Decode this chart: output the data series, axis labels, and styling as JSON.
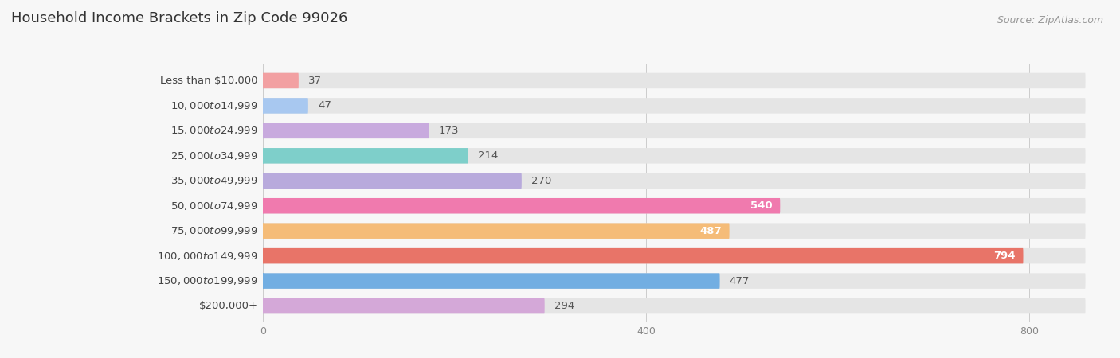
{
  "title": "Household Income Brackets in Zip Code 99026",
  "source": "Source: ZipAtlas.com",
  "categories": [
    "Less than $10,000",
    "$10,000 to $14,999",
    "$15,000 to $24,999",
    "$25,000 to $34,999",
    "$35,000 to $49,999",
    "$50,000 to $74,999",
    "$75,000 to $99,999",
    "$100,000 to $149,999",
    "$150,000 to $199,999",
    "$200,000+"
  ],
  "values": [
    37,
    47,
    173,
    214,
    270,
    540,
    487,
    794,
    477,
    294
  ],
  "bar_colors": [
    "#F2A0A2",
    "#A8C8F0",
    "#C8AADE",
    "#7ECFCA",
    "#B8AADC",
    "#F07AAE",
    "#F5BC78",
    "#E87468",
    "#72AEE2",
    "#D4A8D8"
  ],
  "value_inside": [
    false,
    false,
    false,
    false,
    false,
    true,
    true,
    true,
    false,
    false
  ],
  "xlim": [
    0,
    860
  ],
  "xticks": [
    0,
    400,
    800
  ],
  "background_color": "#f7f7f7",
  "bar_bg_color": "#e5e5e5",
  "bar_height": 0.62,
  "title_fontsize": 13,
  "label_fontsize": 9.5,
  "value_fontsize": 9.5,
  "source_fontsize": 9
}
